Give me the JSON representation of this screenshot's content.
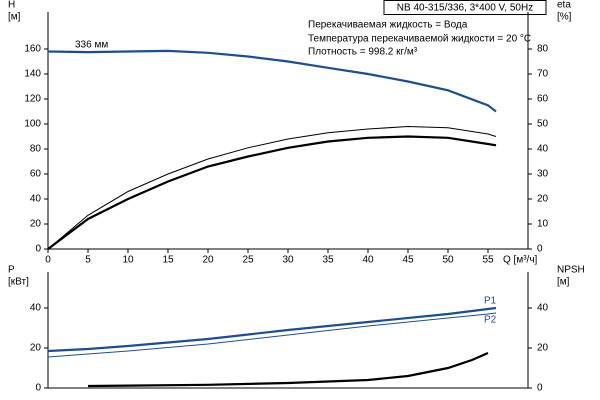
{
  "chart_data": [
    {
      "type": "line",
      "title": "NB 40-315/336, 3*400 V, 50Hz",
      "annotations": [
        "Перекачиваемая жидкость = Вода",
        "Температура перекачиваемой жидкости = 20 °C",
        "Плотность = 998.2 кг/м³",
        "336 мм"
      ],
      "ylabel": [
        "H",
        "[м]"
      ],
      "y2label": [
        "eta",
        "[%]"
      ],
      "xlabel": "Q [м³/ч]",
      "xlim": [
        0,
        60
      ],
      "xticks": [
        0,
        5,
        10,
        15,
        20,
        25,
        30,
        35,
        40,
        45,
        50,
        55
      ],
      "ylim": [
        0,
        180
      ],
      "yticks": [
        0,
        20,
        40,
        60,
        80,
        100,
        120,
        140,
        160
      ],
      "y2lim": [
        0,
        90
      ],
      "y2ticks": [
        0,
        10,
        20,
        30,
        40,
        50,
        60,
        70,
        80
      ],
      "series": [
        {
          "color": "#1f4e8c",
          "line": "bold",
          "x": [
            0,
            5,
            10,
            15,
            20,
            25,
            30,
            35,
            40,
            45,
            50,
            55,
            56
          ],
          "values": [
            158,
            157.5,
            158,
            158.5,
            157,
            154,
            150,
            145,
            140,
            134,
            127,
            115,
            110
          ]
        },
        {
          "color": "#000000",
          "line": "bold",
          "axis": "y2",
          "x": [
            0,
            5,
            10,
            15,
            20,
            25,
            30,
            35,
            40,
            45,
            50,
            55,
            56
          ],
          "values": [
            0,
            12,
            20,
            27,
            33,
            37,
            40.5,
            43,
            44.5,
            45,
            44.5,
            42,
            41.5
          ]
        },
        {
          "color": "#000000",
          "line": "thin",
          "axis": "y2",
          "x": [
            0,
            5,
            10,
            15,
            20,
            25,
            30,
            35,
            40,
            45,
            50,
            55,
            56
          ],
          "values": [
            0,
            13.5,
            23,
            30,
            36,
            40.5,
            44,
            46.5,
            48,
            49,
            48.5,
            46,
            45
          ]
        }
      ]
    },
    {
      "type": "line",
      "ylabel": [
        "P",
        "[кВт]"
      ],
      "y2label": [
        "NPSH",
        "[м]"
      ],
      "xlim": [
        0,
        60
      ],
      "ylim": [
        0,
        52
      ],
      "yticks": [
        0,
        20,
        40
      ],
      "y2lim": [
        0,
        52
      ],
      "y2ticks": [
        0,
        20,
        40
      ],
      "series": [
        {
          "name": "P1",
          "color": "#1f4e8c",
          "line": "bold",
          "x": [
            0,
            5,
            10,
            20,
            30,
            40,
            50,
            55,
            56
          ],
          "values": [
            18.5,
            19.5,
            21,
            24.5,
            29,
            33,
            37,
            39.5,
            40
          ]
        },
        {
          "name": "P2",
          "color": "#1f4e8c",
          "line": "thin",
          "x": [
            0,
            5,
            10,
            20,
            30,
            40,
            50,
            55,
            56
          ],
          "values": [
            15.5,
            17,
            18.5,
            22,
            26.5,
            31,
            35,
            37,
            37.5
          ]
        },
        {
          "color": "#000000",
          "line": "bold",
          "axis": "y2",
          "x": [
            5,
            10,
            20,
            30,
            40,
            45,
            50,
            53,
            55
          ],
          "values": [
            1,
            1.2,
            1.6,
            2.5,
            4,
            6,
            10,
            14,
            17.5
          ]
        }
      ]
    }
  ]
}
